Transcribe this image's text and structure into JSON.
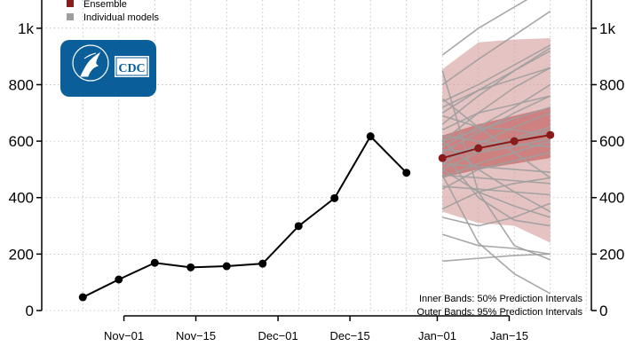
{
  "chart_data": {
    "type": "line",
    "title": "",
    "xlabel": "",
    "ylabel": "",
    "ylim": [
      0,
      1100
    ],
    "y_ticks": [
      {
        "value": 0,
        "label": "0"
      },
      {
        "value": 200,
        "label": "200"
      },
      {
        "value": 400,
        "label": "400"
      },
      {
        "value": 600,
        "label": "600"
      },
      {
        "value": 800,
        "label": "800"
      },
      {
        "value": 1000,
        "label": "1k"
      }
    ],
    "x_range": [
      "2020-10-16",
      "2021-01-31"
    ],
    "x_ticks": [
      {
        "date": "2020-11-01",
        "label": "Nov−01"
      },
      {
        "date": "2020-11-15",
        "label": "Nov−15"
      },
      {
        "date": "2020-12-01",
        "label": "Dec−01"
      },
      {
        "date": "2020-12-15",
        "label": "Dec−15"
      },
      {
        "date": "2021-01-01",
        "label": "Jan−01"
      },
      {
        "date": "2021-01-15",
        "label": "Jan−15"
      }
    ],
    "grid": true,
    "legend_position": "top-left",
    "legend": [
      {
        "label": "Ensemble",
        "color": "#8b1a1a"
      },
      {
        "label": "Individual models",
        "color": "#9e9e9e"
      }
    ],
    "observed": {
      "color": "#000000",
      "points": [
        {
          "x": "2020-10-24",
          "y": 47
        },
        {
          "x": "2020-10-31",
          "y": 110
        },
        {
          "x": "2020-11-07",
          "y": 169
        },
        {
          "x": "2020-11-14",
          "y": 153
        },
        {
          "x": "2020-11-21",
          "y": 157
        },
        {
          "x": "2020-11-28",
          "y": 166
        },
        {
          "x": "2020-12-05",
          "y": 299
        },
        {
          "x": "2020-12-12",
          "y": 398
        },
        {
          "x": "2020-12-19",
          "y": 617
        },
        {
          "x": "2020-12-26",
          "y": 488
        }
      ]
    },
    "ensemble": {
      "color": "#8b1a1a",
      "x": [
        "2021-01-02",
        "2021-01-09",
        "2021-01-16",
        "2021-01-23"
      ],
      "median": [
        540,
        575,
        600,
        622
      ],
      "inner_band_50": {
        "lower": [
          470,
          500,
          520,
          540
        ],
        "upper": [
          620,
          660,
          690,
          720
        ]
      },
      "outer_band_95": {
        "lower": [
          350,
          310,
          300,
          240
        ],
        "upper": [
          855,
          950,
          960,
          965
        ]
      }
    },
    "individual_models": {
      "color": "#9e9e9e",
      "x": [
        "2021-01-02",
        "2021-01-09",
        "2021-01-16",
        "2021-01-23"
      ],
      "series": [
        {
          "values": [
            905,
            1000,
            1075,
            1150
          ]
        },
        {
          "values": [
            800,
            890,
            975,
            1060
          ]
        },
        {
          "values": [
            740,
            800,
            870,
            940
          ]
        },
        {
          "values": [
            700,
            780,
            850,
            920
          ]
        },
        {
          "values": [
            660,
            760,
            850,
            930
          ]
        },
        {
          "values": [
            720,
            780,
            820,
            860
          ]
        },
        {
          "values": [
            600,
            700,
            790,
            860
          ]
        },
        {
          "values": [
            580,
            650,
            720,
            800
          ]
        },
        {
          "values": [
            640,
            700,
            730,
            760
          ]
        },
        {
          "values": [
            560,
            630,
            700,
            760
          ]
        },
        {
          "values": [
            600,
            640,
            680,
            720
          ]
        },
        {
          "values": [
            520,
            590,
            650,
            700
          ]
        },
        {
          "values": [
            690,
            650,
            640,
            620
          ]
        },
        {
          "values": [
            545,
            580,
            610,
            650
          ]
        },
        {
          "values": [
            500,
            560,
            600,
            640
          ]
        },
        {
          "values": [
            570,
            560,
            580,
            610
          ]
        },
        {
          "values": [
            750,
            650,
            560,
            470
          ]
        },
        {
          "values": [
            620,
            600,
            590,
            580
          ]
        },
        {
          "values": [
            470,
            520,
            560,
            600
          ]
        },
        {
          "values": [
            430,
            500,
            530,
            560
          ]
        },
        {
          "values": [
            520,
            510,
            500,
            490
          ]
        },
        {
          "values": [
            480,
            470,
            460,
            450
          ]
        },
        {
          "values": [
            600,
            500,
            420,
            350
          ]
        },
        {
          "values": [
            440,
            430,
            420,
            410
          ]
        },
        {
          "values": [
            500,
            420,
            370,
            330
          ]
        },
        {
          "values": [
            360,
            420,
            450,
            470
          ]
        },
        {
          "values": [
            330,
            300,
            330,
            380
          ]
        },
        {
          "values": [
            560,
            400,
            320,
            300
          ]
        },
        {
          "values": [
            850,
            420,
            230,
            180
          ]
        },
        {
          "values": [
            480,
            240,
            130,
            60
          ]
        },
        {
          "values": [
            270,
            230,
            220,
            200
          ]
        },
        {
          "values": [
            175,
            185,
            195,
            200
          ]
        }
      ]
    },
    "annotations": [
      "Inner Bands: 50% Prediction Intervals",
      "Outer Bands: 95% Prediction Intervals"
    ]
  },
  "logo": {
    "text": "CDC",
    "color": "#0a5e99"
  }
}
